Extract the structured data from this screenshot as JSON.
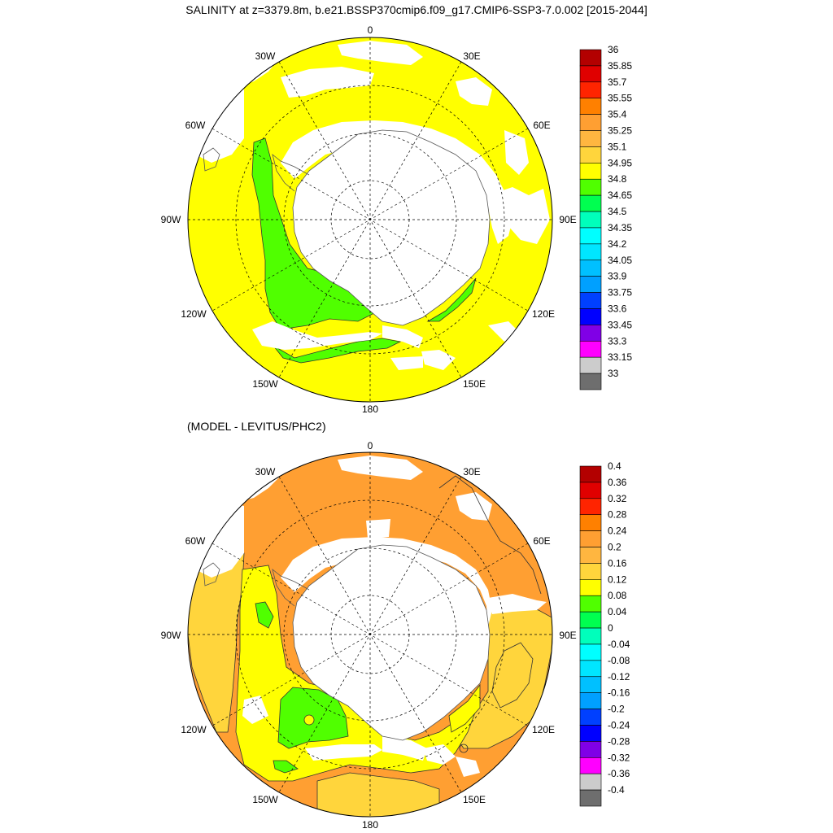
{
  "title": "SALINITY at z=3379.8m, b.e21.BSSP370cmip6.f09_g17.CMIP6-SSP3-7.0.002 [2015-2044]",
  "subtitle": "(MODEL - LEVITUS/PHC2)",
  "longitude_labels": [
    "0",
    "30E",
    "60E",
    "90E",
    "120E",
    "150E",
    "180",
    "150W",
    "120W",
    "90W",
    "60W",
    "30W"
  ],
  "colors": {
    "land_missing": "#ffffff",
    "coast": "#555555",
    "grid": "#000000"
  },
  "maps": [
    {
      "name": "salinity",
      "colorbar": {
        "labels": [
          "36",
          "35.85",
          "35.7",
          "35.55",
          "35.4",
          "35.25",
          "35.1",
          "34.95",
          "34.8",
          "34.65",
          "34.5",
          "34.35",
          "34.2",
          "34.05",
          "33.9",
          "33.75",
          "33.6",
          "33.45",
          "33.3",
          "33.15",
          "33"
        ],
        "colors": [
          "#b30000",
          "#e00000",
          "#ff2400",
          "#ff8000",
          "#ff9f32",
          "#ffb640",
          "#ffd53c",
          "#ffff00",
          "#50ff00",
          "#00ff50",
          "#00ffbb",
          "#00ffff",
          "#00e6ff",
          "#00c0ff",
          "#00a0ff",
          "#0040ff",
          "#0000ff",
          "#8000e6",
          "#ff00ff",
          "#cccccc",
          "#6e6e6e"
        ]
      }
    },
    {
      "name": "difference",
      "colorbar": {
        "labels": [
          "0.4",
          "0.36",
          "0.32",
          "0.28",
          "0.24",
          "0.2",
          "0.16",
          "0.12",
          "0.08",
          "0.04",
          "0",
          "-0.04",
          "-0.08",
          "-0.12",
          "-0.16",
          "-0.2",
          "-0.24",
          "-0.28",
          "-0.32",
          "-0.36",
          "-0.4"
        ],
        "colors": [
          "#b30000",
          "#e00000",
          "#ff2400",
          "#ff8000",
          "#ff9f32",
          "#ffb640",
          "#ffd53c",
          "#ffff00",
          "#50ff00",
          "#00ff50",
          "#00ffbb",
          "#00ffff",
          "#00e6ff",
          "#00c0ff",
          "#00a0ff",
          "#0040ff",
          "#0000ff",
          "#8000e6",
          "#ff00ff",
          "#cccccc",
          "#6e6e6e"
        ]
      }
    }
  ]
}
